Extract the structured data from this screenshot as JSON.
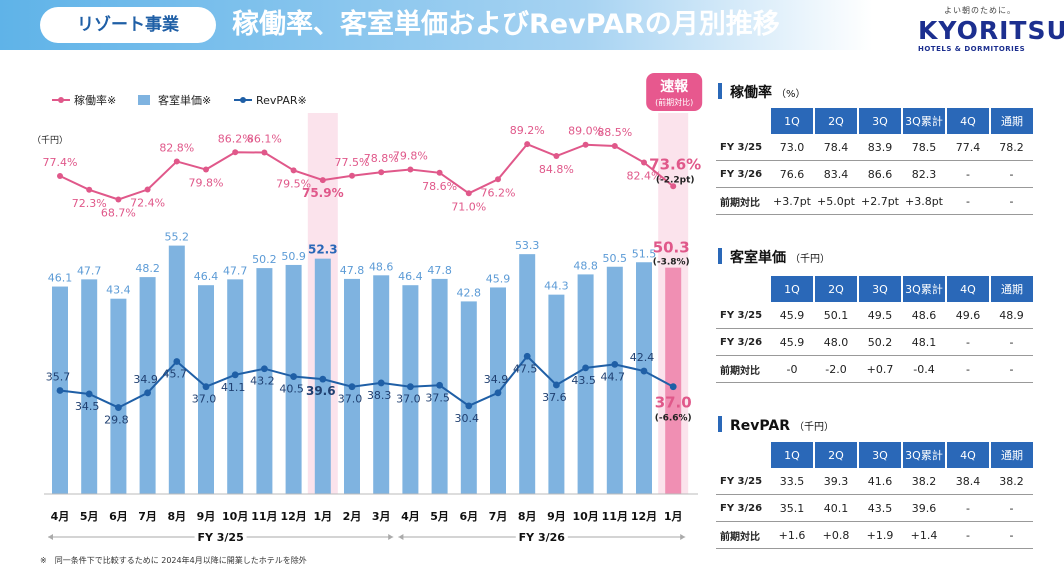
{
  "header": {
    "tag": "リゾート事業",
    "title": "稼働率、客室単価およびRevPARの月別推移",
    "logo_tagline": "よい朝のために。",
    "logo_brand": "KYORITSU",
    "logo_sub": "HOTELS & DORMITORIES"
  },
  "chart_data": {
    "type": "bar+line",
    "legend": [
      "稼働率※",
      "客室単価※",
      "RevPAR※"
    ],
    "unit_label": "（千円）",
    "categories": [
      "4月",
      "5月",
      "6月",
      "7月",
      "8月",
      "9月",
      "10月",
      "11月",
      "12月",
      "1月",
      "2月",
      "3月",
      "4月",
      "5月",
      "6月",
      "7月",
      "8月",
      "9月",
      "10月",
      "11月",
      "12月",
      "1月"
    ],
    "fiscal_years": [
      {
        "label": "FY 3/25"
      },
      {
        "label": "FY 3/26"
      }
    ],
    "series": [
      {
        "name": "稼働率※",
        "kind": "line",
        "color": "#e0588a",
        "values": [
          77.4,
          72.3,
          68.7,
          72.4,
          82.8,
          79.8,
          86.2,
          86.1,
          79.5,
          75.9,
          77.5,
          78.8,
          79.8,
          78.6,
          71.0,
          76.2,
          89.2,
          84.8,
          89.0,
          88.5,
          82.4,
          73.6
        ],
        "labels": [
          "77.4%",
          "72.3%",
          "68.7%",
          "72.4%",
          "82.8%",
          "79.8%",
          "86.2%",
          "86.1%",
          "79.5%",
          "75.9%",
          "77.5%",
          "78.8%",
          "79.8%",
          "78.6%",
          "71.0%",
          "76.2%",
          "89.2%",
          "84.8%",
          "89.0%",
          "88.5%",
          "82.4%",
          "73.6%"
        ]
      },
      {
        "name": "客室単価※",
        "kind": "bar",
        "color": "#7fb3e0",
        "values": [
          46.1,
          47.7,
          43.4,
          48.2,
          55.2,
          46.4,
          47.7,
          50.2,
          50.9,
          52.3,
          47.8,
          48.6,
          46.4,
          47.8,
          42.8,
          45.9,
          53.3,
          44.3,
          48.8,
          50.5,
          51.5,
          50.3
        ]
      },
      {
        "name": "RevPAR※",
        "kind": "line",
        "color": "#1f5fa6",
        "values": [
          35.7,
          34.5,
          29.8,
          34.9,
          45.7,
          37.0,
          41.1,
          43.2,
          40.5,
          39.6,
          37.0,
          38.3,
          37.0,
          37.5,
          30.4,
          34.9,
          47.5,
          37.6,
          43.5,
          44.7,
          42.4,
          37.0
        ]
      }
    ],
    "preliminary": {
      "label": "速報",
      "sub": "(前期対比)",
      "occ_change": "(-2.2pt)",
      "price_change": "(-3.8%)",
      "revpar_change": "(-6.6%)"
    }
  },
  "footnote": "※　同一条件下で比較するために 2024年4月以降に開業したホテルを除外",
  "tables": [
    {
      "title": "稼働率",
      "unit": "（%）",
      "headers": [
        "1Q",
        "2Q",
        "3Q",
        "3Q累計",
        "4Q",
        "通期"
      ],
      "rows": [
        {
          "label": "FY 3/25",
          "cells": [
            "73.0",
            "78.4",
            "83.9",
            "78.5",
            "77.4",
            "78.2"
          ]
        },
        {
          "label": "FY 3/26",
          "cells": [
            "76.6",
            "83.4",
            "86.6",
            "82.3",
            "-",
            "-"
          ]
        },
        {
          "label": "前期対比",
          "cells": [
            "+3.7pt",
            "+5.0pt",
            "+2.7pt",
            "+3.8pt",
            "-",
            "-"
          ]
        }
      ]
    },
    {
      "title": "客室単価",
      "unit": "（千円）",
      "headers": [
        "1Q",
        "2Q",
        "3Q",
        "3Q累計",
        "4Q",
        "通期"
      ],
      "rows": [
        {
          "label": "FY 3/25",
          "cells": [
            "45.9",
            "50.1",
            "49.5",
            "48.6",
            "49.6",
            "48.9"
          ]
        },
        {
          "label": "FY 3/26",
          "cells": [
            "45.9",
            "48.0",
            "50.2",
            "48.1",
            "-",
            "-"
          ]
        },
        {
          "label": "前期対比",
          "cells": [
            "-0",
            "-2.0",
            "+0.7",
            "-0.4",
            "-",
            "-"
          ]
        }
      ]
    },
    {
      "title": "RevPAR",
      "unit": "（千円）",
      "headers": [
        "1Q",
        "2Q",
        "3Q",
        "3Q累計",
        "4Q",
        "通期"
      ],
      "rows": [
        {
          "label": "FY 3/25",
          "cells": [
            "33.5",
            "39.3",
            "41.6",
            "38.2",
            "38.4",
            "38.2"
          ]
        },
        {
          "label": "FY 3/26",
          "cells": [
            "35.1",
            "40.1",
            "43.5",
            "39.6",
            "-",
            "-"
          ]
        },
        {
          "label": "前期対比",
          "cells": [
            "+1.6",
            "+0.8",
            "+1.9",
            "+1.4",
            "-",
            "-"
          ]
        }
      ]
    }
  ]
}
